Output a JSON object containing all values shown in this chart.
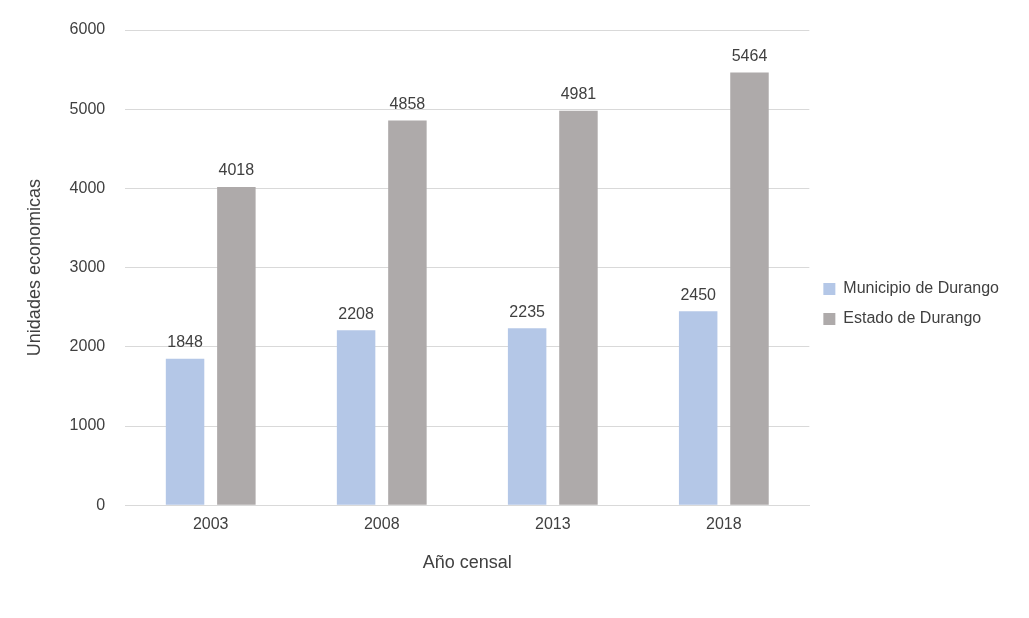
{
  "chart_data": {
    "type": "bar",
    "xlabel": "Año censal",
    "ylabel": "Unidades economicas",
    "categories": [
      "2003",
      "2008",
      "2013",
      "2018"
    ],
    "series": [
      {
        "name": "Municipio de Durango",
        "color": "#b4c7e7",
        "values": [
          1848,
          2208,
          2235,
          2450
        ]
      },
      {
        "name": "Estado de Durango",
        "color": "#aeaaaa",
        "values": [
          4018,
          4858,
          4981,
          5464
        ]
      }
    ],
    "ylim": [
      0,
      6000
    ],
    "yticks": [
      0,
      1000,
      2000,
      3000,
      4000,
      5000,
      6000
    ],
    "grid": "y",
    "legend": "right",
    "data_labels": true
  }
}
